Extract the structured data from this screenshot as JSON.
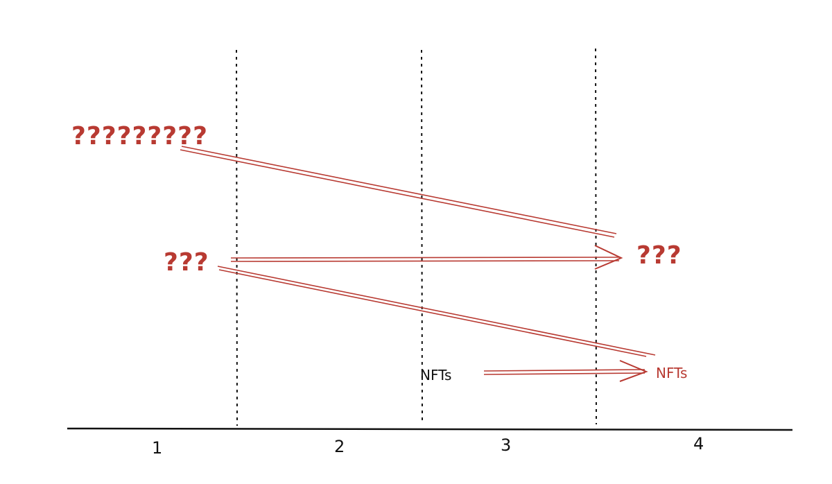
{
  "diagram": {
    "axis_labels": [
      "1",
      "2",
      "3",
      "4"
    ],
    "nodes": {
      "left_many_questions": "?????????",
      "left_three_questions": "???",
      "right_three_questions": "???",
      "nfts_source": "NFTs",
      "nfts_target": "NFTs"
    },
    "connectors": [
      {
        "from": "left_many_questions",
        "to": "right_three_questions",
        "style": "double-line"
      },
      {
        "from": "left_three_questions",
        "to": "right_three_questions",
        "style": "double-arrow"
      },
      {
        "from": "left_three_questions",
        "to": "nfts_target",
        "style": "double-line"
      },
      {
        "from": "nfts_source",
        "to": "nfts_target",
        "style": "double-arrow"
      }
    ],
    "colors": {
      "accent_red": "#b83a32",
      "ink": "#111111"
    }
  }
}
